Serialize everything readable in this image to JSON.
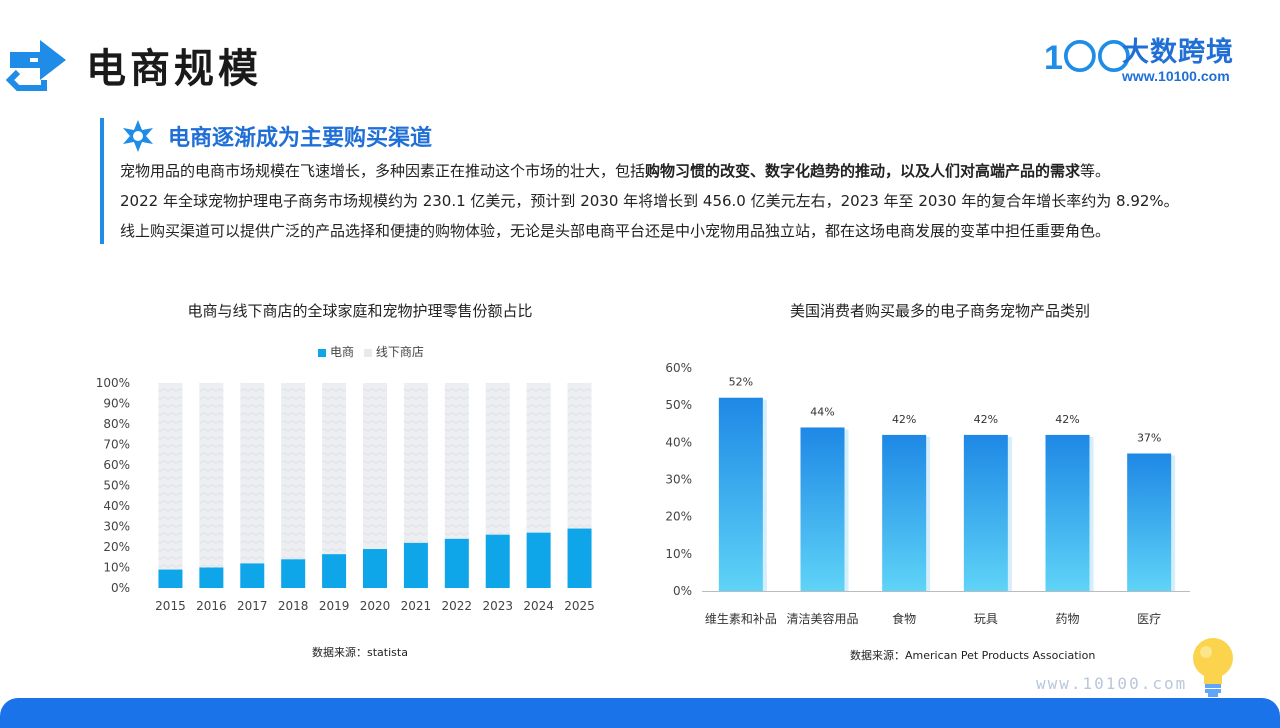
{
  "page": {
    "title": "电商规模"
  },
  "brand": {
    "logo_text": "1〇〇",
    "name": "大数跨境",
    "url": "www.10100.com"
  },
  "section": {
    "title": "电商逐渐成为主要购买渠道",
    "line1_a": "宠物用品的电商市场规模在飞速增长，多种因素正在推动这个市场的壮大，包括",
    "line1_b": "购物习惯的改变、数字化趋势的推动，以及人们对高端产品的需求",
    "line1_c": "等。",
    "line2": "2022 年全球宠物护理电子商务市场规模约为 230.1 亿美元，预计到 2030 年将增长到 456.0 亿美元左右，2023 年至 2030 年的复合年增长率约为 8.92%。",
    "line3": "线上购买渠道可以提供广泛的产品选择和便捷的购物体验，无论是头部电商平台还是中小宠物用品独立站，都在这场电商发展的变革中担任重要角色。"
  },
  "colors": {
    "accent": "#1f8ce8",
    "ecom": "#0ea5e9",
    "offline": "#e6e9ee"
  },
  "chart_data": [
    {
      "type": "bar",
      "stacked": true,
      "title": "电商与线下商店的全球家庭和宠物护理零售份额占比",
      "categories": [
        "2015",
        "2016",
        "2017",
        "2018",
        "2019",
        "2020",
        "2021",
        "2022",
        "2023",
        "2024",
        "2025"
      ],
      "series": [
        {
          "name": "电商",
          "values": [
            9,
            10,
            12,
            14,
            16.5,
            19,
            22,
            24,
            26,
            27,
            29
          ]
        },
        {
          "name": "线下商店",
          "values": [
            91,
            90,
            88,
            86,
            83.5,
            81,
            78,
            76,
            74,
            73,
            71
          ]
        }
      ],
      "yticks": [
        "0%",
        "10%",
        "20%",
        "30%",
        "40%",
        "50%",
        "60%",
        "70%",
        "80%",
        "90%",
        "100%"
      ],
      "ylim": [
        0,
        100
      ],
      "legend": "top",
      "source": "数据来源：statista"
    },
    {
      "type": "bar",
      "title": "美国消费者购买最多的电子商务宠物产品类别",
      "categories": [
        "维生素和补品",
        "清洁美容用品",
        "食物",
        "玩具",
        "药物",
        "医疗"
      ],
      "values": [
        52,
        44,
        42,
        42,
        42,
        37
      ],
      "labels": [
        "52%",
        "44%",
        "42%",
        "42%",
        "42%",
        "37%"
      ],
      "yticks": [
        "0%",
        "10%",
        "20%",
        "30%",
        "40%",
        "50%",
        "60%"
      ],
      "ylim": [
        0,
        60
      ],
      "source": "数据来源：American Pet Products Association"
    }
  ],
  "footer": {
    "url": "www.10100.com"
  }
}
